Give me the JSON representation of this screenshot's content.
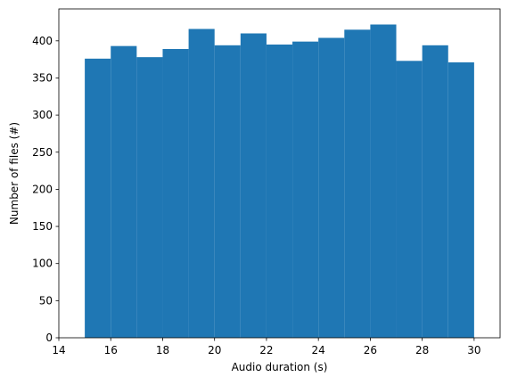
{
  "chart_data": {
    "type": "histogram",
    "x_label": "Audio duration (s)",
    "y_label": "Number of files (#)",
    "bins": [
      15,
      16,
      17,
      18,
      19,
      20,
      21,
      22,
      23,
      24,
      25,
      26,
      27,
      28,
      29,
      30
    ],
    "values": [
      376,
      393,
      378,
      389,
      416,
      394,
      410,
      395,
      399,
      404,
      415,
      422,
      373,
      394,
      371
    ],
    "color": "#1f77b4",
    "xlim": [
      14,
      31
    ],
    "xticks": [
      14,
      16,
      18,
      20,
      22,
      24,
      26,
      28,
      30
    ],
    "ylim": [
      0,
      443
    ],
    "yticks": [
      0,
      50,
      100,
      150,
      200,
      250,
      300,
      350,
      400
    ],
    "grid": false
  }
}
